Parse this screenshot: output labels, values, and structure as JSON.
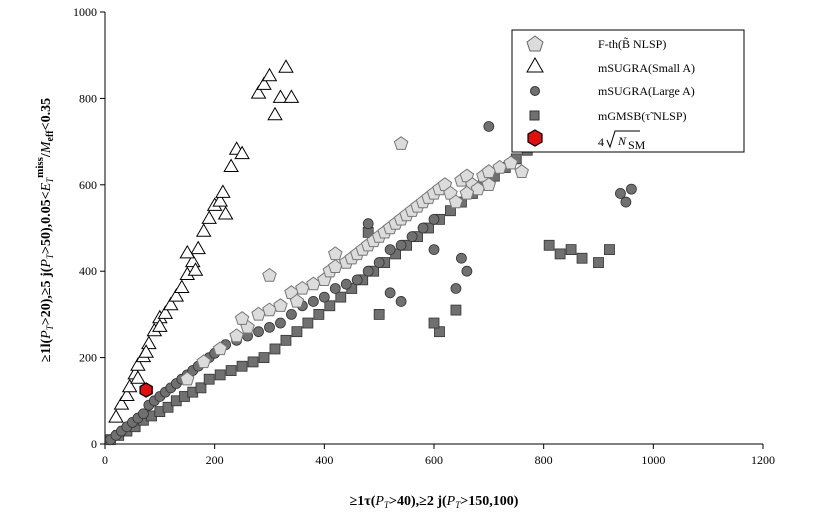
{
  "chart_data": {
    "type": "scatter",
    "xlabel": "≥1τ(P_T>40),≥2j(P_T>150,100)",
    "ylabel": "≥1l(P_T>20),≥5j(P_T>50),0.05<E_T^miss/M_eff<0.35",
    "xlim": [
      0,
      1200
    ],
    "ylim": [
      0,
      1000
    ],
    "xticks": [
      0,
      200,
      400,
      600,
      800,
      1000,
      1200
    ],
    "yticks": [
      0,
      200,
      400,
      600,
      800,
      1000
    ],
    "grid": false,
    "legend_position": "top-right",
    "legend": {
      "fth": "F-th(B̃ NLSP)",
      "small_a": "mSUGRA(Small A)",
      "large_a": "mSUGRA(Large A)",
      "mgmsb": "mGMSB(τ̃ NLSP)",
      "sm_prefix": "4",
      "sm_main": "N",
      "sm_sub": "SM"
    },
    "series": [
      {
        "name": "F-th(B̃ NLSP)",
        "marker": "pentagon",
        "color": "#dcdcdc",
        "x": [
          150,
          180,
          210,
          240,
          260,
          280,
          300,
          320,
          340,
          360,
          380,
          400,
          410,
          420,
          440,
          450,
          460,
          470,
          480,
          490,
          500,
          510,
          520,
          530,
          540,
          550,
          560,
          570,
          580,
          590,
          600,
          610,
          620,
          630,
          640,
          650,
          660,
          670,
          680,
          690,
          700,
          720,
          740,
          760,
          540,
          660,
          700,
          300,
          350,
          250,
          420
        ],
        "y": [
          150,
          190,
          220,
          250,
          270,
          300,
          310,
          320,
          350,
          360,
          370,
          380,
          400,
          410,
          420,
          430,
          440,
          450,
          460,
          470,
          480,
          490,
          500,
          510,
          520,
          530,
          540,
          550,
          560,
          570,
          580,
          590,
          600,
          580,
          560,
          610,
          620,
          600,
          590,
          620,
          630,
          640,
          650,
          630,
          695,
          580,
          600,
          390,
          330,
          290,
          440
        ]
      },
      {
        "name": "mSUGRA(Small A)",
        "marker": "triangle",
        "color": "#ffffff",
        "x": [
          20,
          30,
          40,
          45,
          55,
          60,
          70,
          80,
          90,
          100,
          110,
          120,
          130,
          140,
          150,
          160,
          170,
          180,
          190,
          200,
          210,
          215,
          220,
          230,
          240,
          250,
          280,
          290,
          300,
          310,
          320,
          330,
          340,
          150,
          165,
          100,
          60,
          75
        ],
        "y": [
          60,
          90,
          110,
          130,
          160,
          180,
          200,
          230,
          260,
          290,
          300,
          320,
          340,
          360,
          390,
          420,
          450,
          490,
          520,
          550,
          560,
          580,
          530,
          640,
          680,
          670,
          810,
          830,
          850,
          760,
          800,
          870,
          800,
          440,
          400,
          270,
          150,
          210
        ]
      },
      {
        "name": "mSUGRA(Large A)",
        "marker": "circle",
        "color": "#707070",
        "x": [
          10,
          20,
          30,
          40,
          50,
          60,
          70,
          80,
          90,
          100,
          110,
          120,
          130,
          140,
          150,
          160,
          170,
          180,
          190,
          200,
          220,
          240,
          260,
          280,
          300,
          320,
          340,
          360,
          380,
          400,
          420,
          440,
          460,
          480,
          500,
          520,
          540,
          560,
          580,
          600,
          640,
          660,
          700,
          780,
          940,
          960,
          950,
          650,
          600,
          540,
          520,
          480
        ],
        "y": [
          10,
          20,
          30,
          40,
          50,
          60,
          70,
          90,
          100,
          110,
          120,
          130,
          140,
          150,
          160,
          170,
          180,
          190,
          200,
          210,
          230,
          240,
          250,
          260,
          270,
          280,
          300,
          320,
          330,
          340,
          360,
          370,
          380,
          400,
          420,
          450,
          460,
          480,
          500,
          520,
          360,
          400,
          735,
          700,
          580,
          590,
          560,
          430,
          450,
          330,
          350,
          510
        ]
      },
      {
        "name": "mGMSB(τ̃ NLSP)",
        "marker": "square",
        "color": "#707070",
        "x": [
          10,
          25,
          40,
          55,
          70,
          85,
          100,
          115,
          130,
          145,
          160,
          175,
          190,
          210,
          230,
          250,
          270,
          290,
          310,
          330,
          350,
          370,
          390,
          410,
          430,
          450,
          470,
          490,
          510,
          530,
          550,
          570,
          590,
          610,
          630,
          650,
          670,
          690,
          710,
          730,
          750,
          770,
          790,
          810,
          830,
          850,
          870,
          900,
          920,
          480,
          500,
          610,
          600,
          640
        ],
        "y": [
          10,
          20,
          30,
          40,
          55,
          65,
          75,
          85,
          100,
          110,
          120,
          130,
          150,
          160,
          170,
          180,
          190,
          200,
          220,
          240,
          260,
          280,
          300,
          320,
          340,
          360,
          380,
          400,
          420,
          440,
          460,
          480,
          500,
          520,
          540,
          560,
          580,
          600,
          620,
          640,
          660,
          680,
          700,
          460,
          440,
          450,
          430,
          420,
          450,
          490,
          300,
          260,
          280,
          310
        ]
      },
      {
        "name": "4√N_SM",
        "marker": "hexagon",
        "color": "#e01010",
        "x": [
          75
        ],
        "y": [
          125
        ]
      }
    ]
  }
}
